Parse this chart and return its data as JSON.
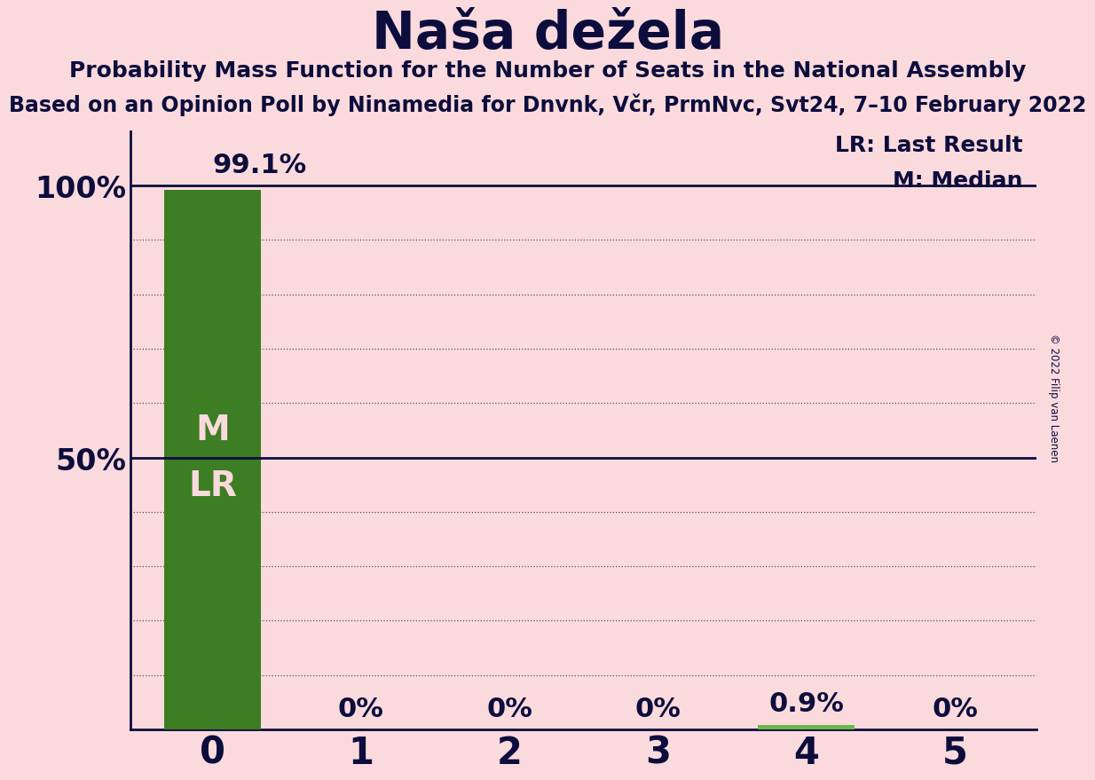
{
  "title": "Naša dežela",
  "subtitle1": "Probability Mass Function for the Number of Seats in the National Assembly",
  "subtitle2": "Based on an Opinion Poll by Ninamedia for Dnvnk, Včr, PrmNvc, Svt24, 7–10 February 2022",
  "copyright": "© 2022 Filip van Laenen",
  "categories": [
    0,
    1,
    2,
    3,
    4,
    5
  ],
  "values": [
    99.1,
    0.0,
    0.0,
    0.0,
    0.9,
    0.0
  ],
  "bar_color_main": "#3d7d23",
  "bar_color_small": "#6ab84a",
  "background_color": "#fadadd",
  "label_color_inside": "#fadadd",
  "label_color_outside": "#0d0d3d",
  "ylim": [
    0,
    110
  ],
  "legend_lr": "LR: Last Result",
  "legend_m": "M: Median",
  "zero_label": "0%",
  "title_fontsize": 42,
  "subtitle1_fontsize": 18,
  "subtitle2_fontsize": 17,
  "ytick_fontsize": 24,
  "xtick_fontsize": 30,
  "bar_label_fontsize": 22,
  "inner_label_fontsize": 28,
  "legend_fontsize": 18
}
